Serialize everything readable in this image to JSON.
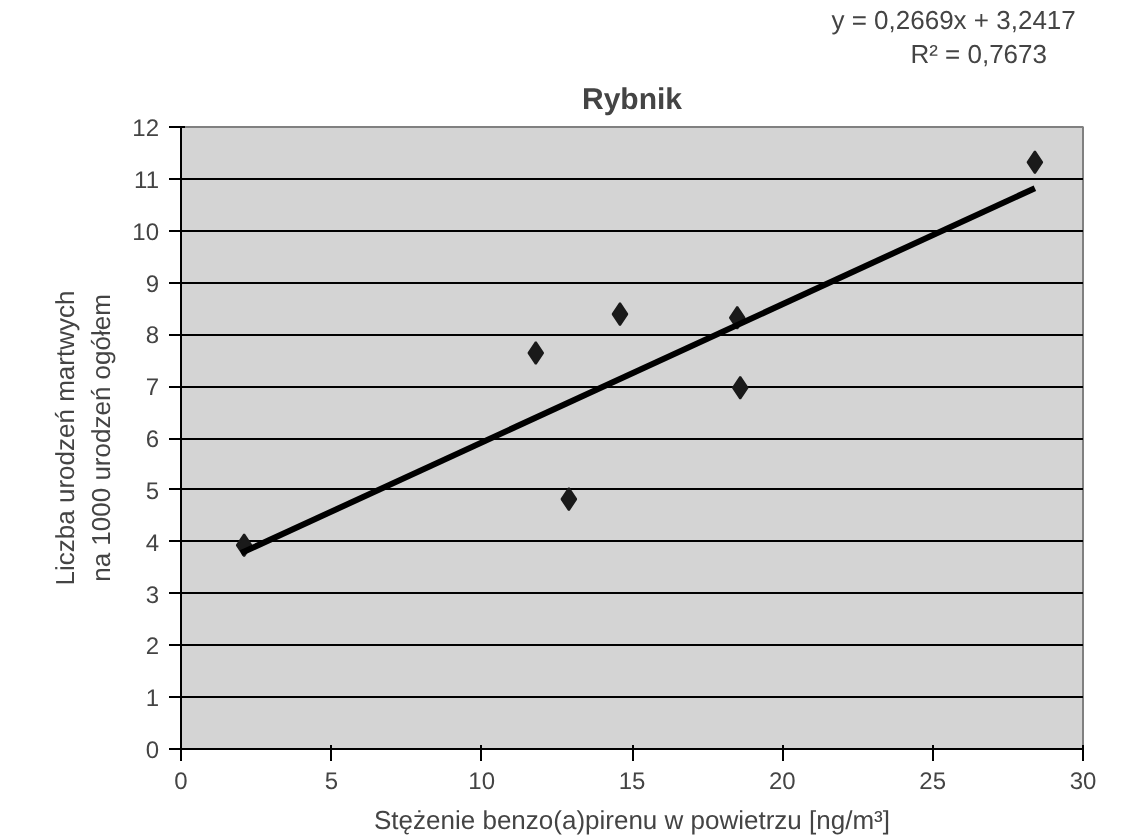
{
  "chart_data": {
    "type": "scatter",
    "title": "Rybnik",
    "xlabel": "Stężenie benzo(a)pirenu w powietrzu [ng/m³]",
    "ylabel": "Liczba urodzeń martwych na 1000 urodzeń ogółem",
    "annotations": [
      "y = 0,2669x  + 3,2417",
      "R² = 0,7673"
    ],
    "series": [
      {
        "color": "#1a1a1a",
        "marker": "diamond",
        "x": [
          2.1,
          11.8,
          12.9,
          14.6,
          18.5,
          18.6,
          28.4
        ],
        "values": [
          3.93,
          7.64,
          4.82,
          8.39,
          8.32,
          6.97,
          11.32
        ]
      },
      {
        "type": "line",
        "color": "#000000",
        "x": [
          2.0,
          28.4
        ],
        "values": [
          3.78,
          10.82
        ]
      }
    ],
    "xlim": [
      0,
      30
    ],
    "ylim": [
      0,
      12
    ],
    "xticks": [
      0,
      5,
      10,
      15,
      20,
      25,
      30
    ],
    "yticks": [
      0,
      1,
      2,
      3,
      4,
      5,
      6,
      7,
      8,
      9,
      10,
      11,
      12
    ],
    "grid": "y"
  }
}
